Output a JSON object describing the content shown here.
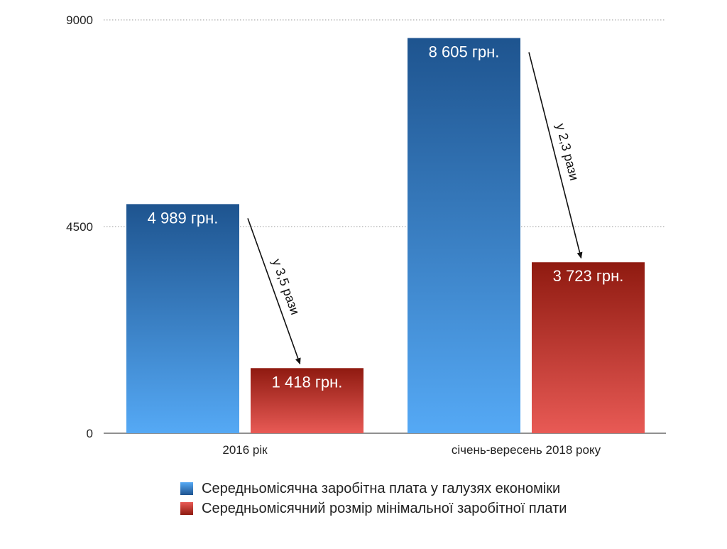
{
  "chart_data": {
    "type": "bar",
    "categories": [
      "2016 рік",
      "січень-вересень 2018 року"
    ],
    "ylim": [
      0,
      9000
    ],
    "yticks": [
      0,
      4500,
      9000
    ],
    "grid": true,
    "legend_placement": "bottom",
    "series": [
      {
        "name": "Середньомісячна заробітна плата у галузях економіки",
        "values": [
          4989,
          8605
        ],
        "data_labels": [
          "4 989 грн.",
          "8 605 грн."
        ],
        "color_top": "#1e548f",
        "color_bottom": "#55a9f5"
      },
      {
        "name": "Середньомісячний розмір мінімальної заробітної плати",
        "values": [
          1418,
          3723
        ],
        "data_labels": [
          "1 418 грн.",
          "3 723 грн."
        ],
        "color_top": "#8f1a10",
        "color_bottom": "#e85a55"
      }
    ],
    "annotations": [
      {
        "category_index": 0,
        "text": "у 3,5 рази"
      },
      {
        "category_index": 1,
        "text": "у 2,3 рази"
      }
    ]
  }
}
